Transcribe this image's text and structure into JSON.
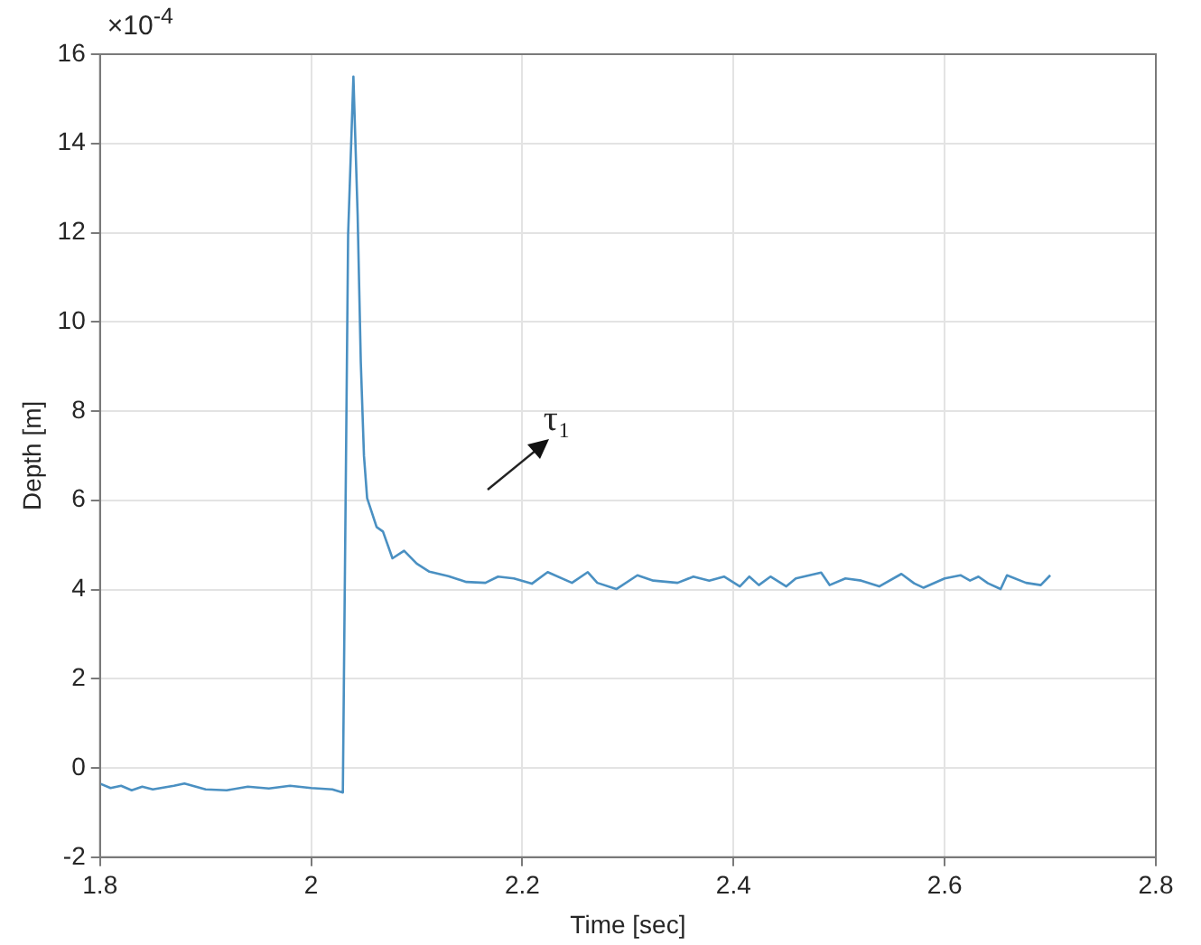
{
  "chart_data": {
    "type": "line",
    "xlabel": "Time [sec]",
    "ylabel": "Depth [m]",
    "annotations": [
      "×10$^{-4}$",
      "τ₁"
    ],
    "xlim": [
      1.8,
      2.8
    ],
    "xticks": [
      1.8,
      2,
      2.2,
      2.4,
      2.6,
      2.8
    ],
    "ylim": [
      -2,
      16
    ],
    "yticks": [
      -2,
      0,
      2,
      4,
      6,
      8,
      10,
      12,
      14,
      16
    ],
    "grid": true,
    "marker": "none",
    "line_style": "solid",
    "series": [
      {
        "color": "#4a90c2",
        "x": [
          1.8,
          1.81,
          1.82,
          1.83,
          1.84,
          1.85,
          1.87,
          1.88,
          1.9,
          1.92,
          1.94,
          1.96,
          1.98,
          2.0,
          2.02,
          2.03,
          2.035,
          2.04,
          2.044,
          2.047,
          2.05,
          2.053,
          2.062,
          2.068,
          2.077,
          2.088,
          2.1,
          2.112,
          2.13,
          2.147,
          2.165,
          2.177,
          2.192,
          2.209,
          2.224,
          2.247,
          2.262,
          2.271,
          2.289,
          2.309,
          2.324,
          2.347,
          2.362,
          2.377,
          2.391,
          2.406,
          2.415,
          2.424,
          2.435,
          2.45,
          2.459,
          2.483,
          2.491,
          2.506,
          2.521,
          2.538,
          2.559,
          2.571,
          2.58,
          2.6,
          2.615,
          2.624,
          2.632,
          2.641,
          2.653,
          2.659,
          2.677,
          2.691,
          2.7
        ],
        "values": [
          -0.35,
          -0.45,
          -0.4,
          -0.5,
          -0.42,
          -0.48,
          -0.4,
          -0.35,
          -0.48,
          -0.5,
          -0.42,
          -0.46,
          -0.4,
          -0.45,
          -0.48,
          -0.55,
          11.96,
          15.5,
          12.4,
          9.1,
          7.0,
          6.05,
          5.4,
          5.3,
          4.7,
          4.87,
          4.58,
          4.4,
          4.3,
          4.17,
          4.15,
          4.29,
          4.25,
          4.13,
          4.39,
          4.15,
          4.39,
          4.15,
          4.01,
          4.32,
          4.2,
          4.15,
          4.29,
          4.2,
          4.29,
          4.07,
          4.29,
          4.1,
          4.29,
          4.07,
          4.25,
          4.38,
          4.1,
          4.25,
          4.2,
          4.07,
          4.35,
          4.14,
          4.04,
          4.25,
          4.32,
          4.2,
          4.29,
          4.14,
          4.01,
          4.32,
          4.15,
          4.1,
          4.32
        ]
      }
    ]
  }
}
